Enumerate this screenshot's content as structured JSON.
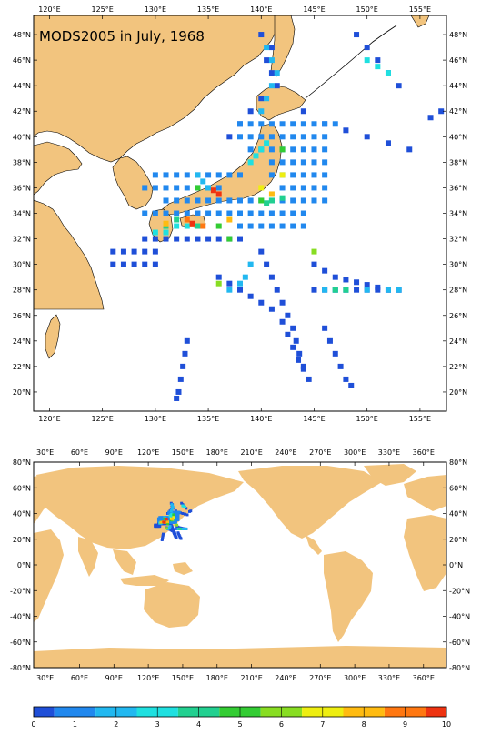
{
  "top_map": {
    "title": "MODS2005 in July, 1968",
    "lon_labels": [
      "120°E",
      "125°E",
      "130°E",
      "135°E",
      "140°E",
      "145°E",
      "150°E",
      "155°E"
    ],
    "lat_labels": [
      "48°N",
      "46°N",
      "44°N",
      "42°N",
      "40°N",
      "38°N",
      "36°N",
      "34°N",
      "32°N",
      "30°N",
      "28°N",
      "26°N",
      "24°N",
      "22°N",
      "20°N"
    ],
    "extent": {
      "lon": [
        118.5,
        157.5
      ],
      "lat": [
        18.5,
        49.5
      ]
    }
  },
  "world_map": {
    "lon_labels": [
      "30°E",
      "60°E",
      "90°E",
      "120°E",
      "150°E",
      "180°E",
      "210°E",
      "240°E",
      "270°E",
      "300°E",
      "330°E",
      "360°E"
    ],
    "lat_labels": [
      "80°N",
      "60°N",
      "40°N",
      "20°N",
      "0°N",
      "-20°N",
      "-40°N",
      "-60°N",
      "-80°N"
    ],
    "extent": {
      "lon": [
        20,
        380
      ],
      "lat": [
        -80,
        80
      ]
    }
  },
  "colorbar": {
    "labels": [
      "0",
      "1",
      "2",
      "3",
      "4",
      "5",
      "6",
      "7",
      "8",
      "9",
      "10"
    ],
    "colors": [
      "#1f4fd8",
      "#2188ee",
      "#22b8f0",
      "#1fe0e0",
      "#22d090",
      "#33cc33",
      "#88dd22",
      "#eeee11",
      "#ffbb11",
      "#ff7711",
      "#ee3311"
    ]
  },
  "colors": {
    "land": "#f2c47e",
    "ocean": "#ffffff",
    "frame": "#000000"
  },
  "observation_tracks": [
    {
      "level": 0,
      "points": [
        [
          129,
          32
        ],
        [
          130,
          32
        ],
        [
          131,
          32
        ],
        [
          132,
          32
        ],
        [
          133,
          32
        ],
        [
          134,
          32
        ],
        [
          135,
          32
        ],
        [
          136,
          32
        ],
        [
          137,
          32
        ],
        [
          138,
          32
        ]
      ]
    },
    {
      "level": 0,
      "points": [
        [
          126,
          31
        ],
        [
          127,
          31
        ],
        [
          128,
          31
        ],
        [
          129,
          31
        ],
        [
          130,
          31
        ]
      ]
    },
    {
      "level": 0,
      "points": [
        [
          126,
          30
        ],
        [
          127,
          30
        ],
        [
          128,
          30
        ],
        [
          129,
          30
        ],
        [
          130,
          30
        ]
      ]
    },
    {
      "level": 0,
      "points": [
        [
          140,
          31
        ],
        [
          140.5,
          30
        ],
        [
          141,
          29
        ],
        [
          141.5,
          28
        ],
        [
          142,
          27
        ],
        [
          142.5,
          26
        ],
        [
          143,
          25
        ],
        [
          143.3,
          24
        ],
        [
          143.6,
          23
        ],
        [
          144,
          22
        ],
        [
          144.5,
          21
        ]
      ]
    },
    {
      "level": 0,
      "points": [
        [
          136,
          29
        ],
        [
          137,
          28.5
        ],
        [
          138,
          28
        ],
        [
          139,
          27.5
        ],
        [
          140,
          27
        ],
        [
          141,
          26.5
        ],
        [
          142,
          25.5
        ],
        [
          142.5,
          24.5
        ],
        [
          143,
          23.5
        ],
        [
          143.5,
          22.5
        ],
        [
          144,
          21.8
        ]
      ]
    },
    {
      "level": 0,
      "points": [
        [
          145,
          30
        ],
        [
          146,
          29.5
        ],
        [
          147,
          29
        ],
        [
          148,
          28.8
        ],
        [
          149,
          28.6
        ],
        [
          150,
          28.4
        ],
        [
          151,
          28.2
        ],
        [
          152,
          28
        ],
        [
          153,
          28
        ]
      ]
    },
    {
      "level": 0,
      "points": [
        [
          145,
          28
        ],
        [
          146,
          28
        ],
        [
          147,
          28
        ],
        [
          148,
          28
        ],
        [
          149,
          28
        ],
        [
          150,
          28
        ],
        [
          151,
          28
        ],
        [
          152,
          28
        ],
        [
          153,
          28
        ]
      ]
    },
    {
      "level": 0,
      "points": [
        [
          146,
          25
        ],
        [
          146.5,
          24
        ],
        [
          147,
          23
        ],
        [
          147.5,
          22
        ],
        [
          148,
          21
        ],
        [
          148.5,
          20.5
        ]
      ]
    },
    {
      "level": 0,
      "points": [
        [
          133,
          24
        ],
        [
          132.8,
          23
        ],
        [
          132.6,
          22
        ],
        [
          132.4,
          21
        ],
        [
          132.2,
          20
        ],
        [
          132,
          19.5
        ]
      ]
    },
    {
      "level": 0,
      "points": [
        [
          144,
          42
        ],
        [
          146,
          41
        ],
        [
          148,
          40.5
        ],
        [
          150,
          40
        ],
        [
          152,
          39.5
        ],
        [
          154,
          39
        ],
        [
          156,
          41.5
        ],
        [
          157,
          42
        ]
      ]
    },
    {
      "level": 0,
      "points": [
        [
          149,
          48
        ],
        [
          150,
          47
        ],
        [
          151,
          46
        ],
        [
          152,
          45
        ],
        [
          153,
          44
        ]
      ]
    },
    {
      "level": 0,
      "points": [
        [
          140,
          48
        ],
        [
          141,
          47
        ],
        [
          140.5,
          46
        ],
        [
          141,
          45
        ],
        [
          141.5,
          44
        ],
        [
          140,
          43
        ],
        [
          139,
          42
        ],
        [
          138,
          41
        ],
        [
          137,
          40
        ]
      ]
    },
    {
      "level": 1,
      "points": [
        [
          138,
          40
        ],
        [
          139,
          40
        ],
        [
          140,
          40
        ],
        [
          141,
          40
        ],
        [
          142,
          40
        ],
        [
          143,
          40
        ],
        [
          144,
          40
        ],
        [
          145,
          40
        ],
        [
          146,
          40
        ]
      ]
    },
    {
      "level": 1,
      "points": [
        [
          138,
          41
        ],
        [
          139,
          41
        ],
        [
          140,
          41
        ],
        [
          141,
          41
        ],
        [
          142,
          41
        ],
        [
          143,
          41
        ],
        [
          144,
          41
        ],
        [
          145,
          41
        ],
        [
          146,
          41
        ],
        [
          147,
          41
        ]
      ]
    },
    {
      "level": 1,
      "points": [
        [
          139,
          39
        ],
        [
          140,
          39
        ],
        [
          141,
          39
        ],
        [
          142,
          39
        ],
        [
          143,
          39
        ],
        [
          144,
          39
        ],
        [
          145,
          39
        ],
        [
          146,
          39
        ]
      ]
    },
    {
      "level": 1,
      "points": [
        [
          130,
          37
        ],
        [
          131,
          37
        ],
        [
          132,
          37
        ],
        [
          133,
          37
        ],
        [
          134,
          37
        ],
        [
          135,
          37
        ],
        [
          136,
          37
        ],
        [
          137,
          37
        ],
        [
          138,
          37
        ]
      ]
    },
    {
      "level": 1,
      "points": [
        [
          129,
          36
        ],
        [
          130,
          36
        ],
        [
          131,
          36
        ],
        [
          132,
          36
        ],
        [
          133,
          36
        ],
        [
          134,
          36
        ],
        [
          135,
          36
        ],
        [
          136,
          36
        ]
      ]
    },
    {
      "level": 1,
      "points": [
        [
          131,
          35
        ],
        [
          132,
          35
        ],
        [
          133,
          35
        ],
        [
          134,
          35
        ],
        [
          135,
          35
        ],
        [
          136,
          35
        ],
        [
          137,
          35
        ],
        [
          138,
          35
        ],
        [
          139,
          35
        ],
        [
          140,
          35
        ],
        [
          141,
          35
        ],
        [
          142,
          35
        ],
        [
          143,
          35
        ],
        [
          144,
          35
        ],
        [
          145,
          35
        ],
        [
          146,
          35
        ]
      ]
    },
    {
      "level": 1,
      "points": [
        [
          129,
          34
        ],
        [
          130,
          34
        ],
        [
          131,
          34
        ],
        [
          132,
          34
        ],
        [
          133,
          34
        ],
        [
          134,
          34
        ],
        [
          135,
          34
        ],
        [
          136,
          34
        ],
        [
          137,
          34
        ],
        [
          138,
          34
        ],
        [
          139,
          34
        ],
        [
          140,
          34
        ],
        [
          141,
          34
        ],
        [
          142,
          34
        ],
        [
          143,
          34
        ],
        [
          144,
          34
        ]
      ]
    },
    {
      "level": 1,
      "points": [
        [
          138,
          33
        ],
        [
          139,
          33
        ],
        [
          140,
          33
        ],
        [
          141,
          33
        ],
        [
          142,
          33
        ],
        [
          143,
          33
        ],
        [
          144,
          33
        ]
      ]
    },
    {
      "level": 1,
      "points": [
        [
          141,
          38
        ],
        [
          142,
          38
        ],
        [
          143,
          38
        ],
        [
          144,
          38
        ],
        [
          145,
          38
        ],
        [
          146,
          38
        ]
      ]
    },
    {
      "level": 1,
      "points": [
        [
          141,
          37
        ],
        [
          142,
          37
        ],
        [
          143,
          37
        ],
        [
          144,
          37
        ],
        [
          145,
          37
        ],
        [
          146,
          37
        ]
      ]
    },
    {
      "level": 1,
      "points": [
        [
          142,
          36
        ],
        [
          143,
          36
        ],
        [
          144,
          36
        ],
        [
          145,
          36
        ],
        [
          146,
          36
        ]
      ]
    },
    {
      "level": 2,
      "points": [
        [
          140,
          42
        ],
        [
          140.5,
          43
        ],
        [
          141,
          44
        ],
        [
          141.5,
          45
        ],
        [
          141,
          46
        ],
        [
          140.5,
          47
        ]
      ]
    },
    {
      "level": 2,
      "points": [
        [
          134,
          37
        ],
        [
          134.5,
          36.5
        ],
        [
          135,
          36
        ]
      ]
    },
    {
      "level": 2,
      "points": [
        [
          139,
          30
        ],
        [
          138.5,
          29
        ],
        [
          138,
          28.5
        ],
        [
          137,
          28
        ]
      ]
    },
    {
      "level": 2,
      "points": [
        [
          146,
          28
        ],
        [
          147,
          28
        ],
        [
          148,
          28
        ],
        [
          150,
          28
        ],
        [
          152,
          28
        ],
        [
          153,
          28
        ]
      ]
    },
    {
      "level": 3,
      "points": [
        [
          139,
          38
        ],
        [
          139.5,
          38.5
        ],
        [
          140,
          39
        ],
        [
          140.5,
          39.5
        ]
      ]
    },
    {
      "level": 3,
      "points": [
        [
          130,
          32.5
        ],
        [
          131,
          32.5
        ],
        [
          132,
          33
        ],
        [
          133,
          33
        ]
      ]
    },
    {
      "level": 3,
      "points": [
        [
          150,
          46
        ],
        [
          151,
          45.5
        ],
        [
          152,
          45
        ]
      ]
    },
    {
      "level": 4,
      "points": [
        [
          141,
          35
        ],
        [
          140.5,
          34.8
        ],
        [
          142,
          35.2
        ]
      ]
    },
    {
      "level": 4,
      "points": [
        [
          131,
          33
        ],
        [
          132,
          33.5
        ],
        [
          134,
          33
        ]
      ]
    },
    {
      "level": 4,
      "points": [
        [
          147,
          28
        ],
        [
          148,
          28
        ]
      ]
    },
    {
      "level": 5,
      "points": [
        [
          137,
          32
        ],
        [
          136,
          33
        ],
        [
          140,
          35
        ]
      ]
    },
    {
      "level": 5,
      "points": [
        [
          134,
          36
        ],
        [
          142,
          39
        ]
      ]
    },
    {
      "level": 6,
      "points": [
        [
          136,
          28.5
        ],
        [
          145,
          31
        ]
      ]
    },
    {
      "level": 7,
      "points": [
        [
          140,
          36
        ],
        [
          142,
          37
        ]
      ]
    },
    {
      "level": 8,
      "points": [
        [
          131,
          33.2
        ],
        [
          137,
          33.5
        ],
        [
          141,
          35.5
        ]
      ]
    },
    {
      "level": 9,
      "points": [
        [
          134.5,
          33
        ],
        [
          133,
          33.5
        ]
      ]
    },
    {
      "level": 10,
      "points": [
        [
          135.5,
          35.8
        ],
        [
          136,
          35.5
        ],
        [
          133.5,
          33.2
        ]
      ]
    }
  ]
}
